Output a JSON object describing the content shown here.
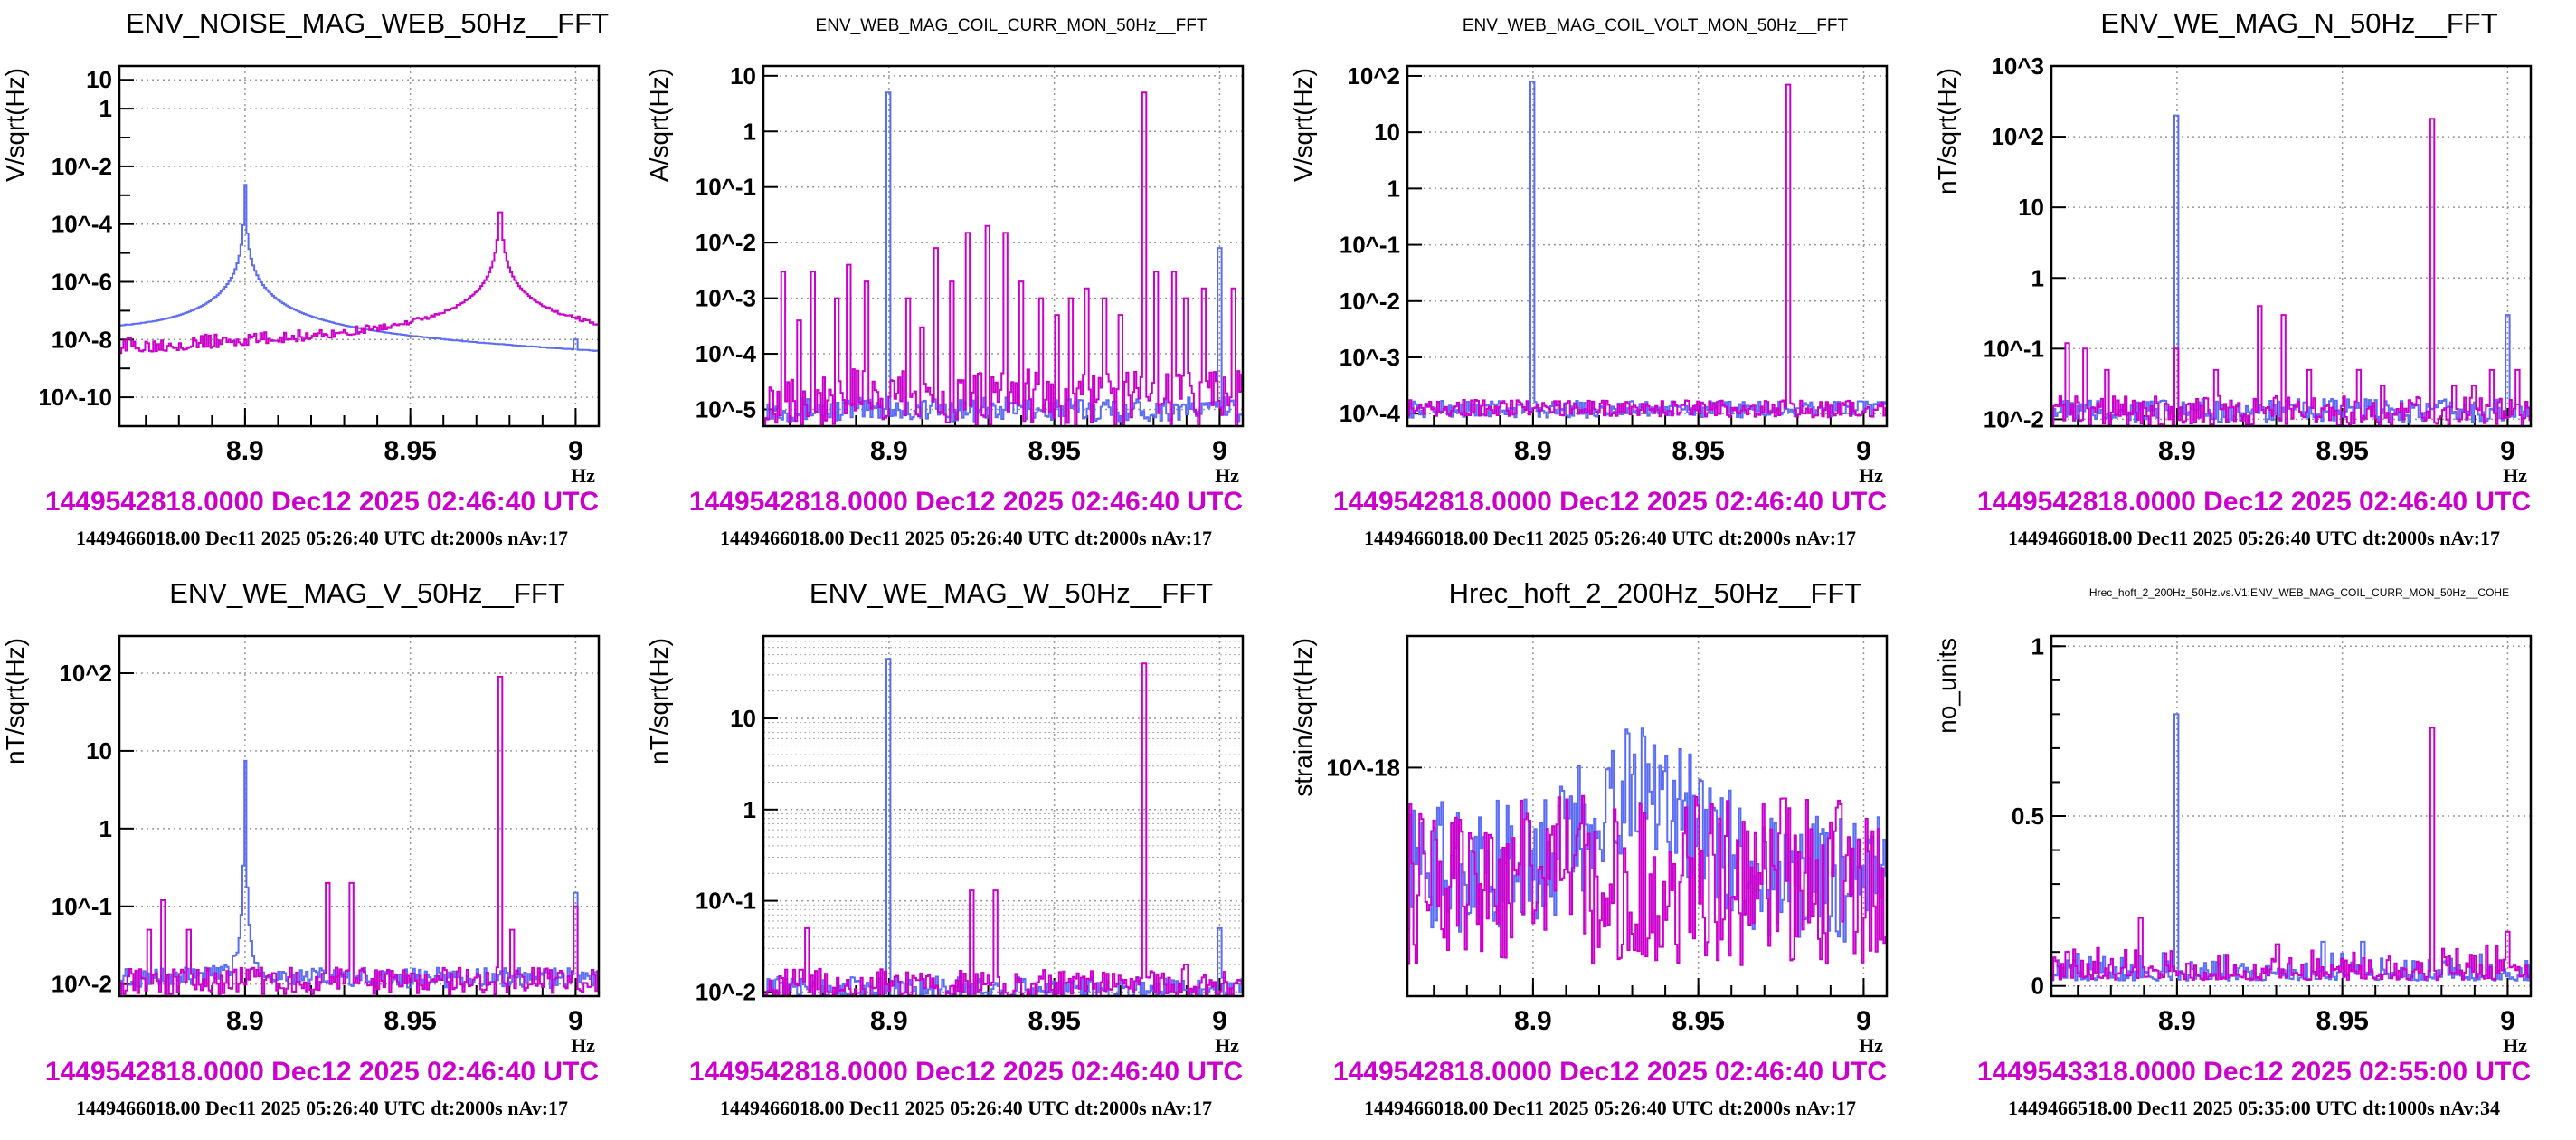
{
  "colors": {
    "ref": "#5b6cf5",
    "cur": "#cc00cc",
    "grid": "#999999"
  },
  "chart_data": [
    {
      "type": "line",
      "title": "ENV_NOISE_MAG_WEB_50Hz__FFT",
      "title_size": "big",
      "ylabel": "V/sqrt(Hz)",
      "xlabel": "Hz",
      "xlim": [
        8.862,
        9.007
      ],
      "xticks": [
        8.9,
        8.95,
        9
      ],
      "xtick_labels": [
        "8.9",
        "8.95",
        "9"
      ],
      "yscale": "log",
      "ylim": [
        1e-11,
        30
      ],
      "yticks": [
        1e-10,
        1e-08,
        1e-06,
        0.0001,
        0.01,
        1,
        10
      ],
      "ytick_labels": [
        "10^-10",
        "10^-8",
        "10^-6",
        "10^-4",
        "10^-2",
        "1",
        "10"
      ],
      "series": [
        {
          "name": "reference",
          "color": "#5b6cf5",
          "base": [
            1.5e-08,
            2e-09
          ],
          "noise": 0.05,
          "lorentz": [
            [
              8.9,
              8,
              1.7e-06
            ]
          ],
          "peaks": [
            [
              9.0,
              1e-08
            ]
          ]
        },
        {
          "name": "current",
          "color": "#cc00cc",
          "base": [
            4e-09,
            1.2e-08
          ],
          "noise": 0.9,
          "lorentz": [
            [
              8.9772,
              8,
              1.7e-06
            ]
          ],
          "peaks": []
        }
      ],
      "time_current": "1449542818.0000 Dec12 2025 02:46:40 UTC",
      "time_reference": "1449466018.00 Dec11 2025 05:26:40 UTC dt:2000s nAv:17"
    },
    {
      "type": "line",
      "title": "ENV_WEB_MAG_COIL_CURR_MON_50Hz__FFT",
      "title_size": "small",
      "ylabel": "A/sqrt(Hz)",
      "xlabel": "Hz",
      "xlim": [
        8.862,
        9.007
      ],
      "xticks": [
        8.9,
        8.95,
        9
      ],
      "xtick_labels": [
        "8.9",
        "8.95",
        "9"
      ],
      "yscale": "log",
      "ylim": [
        5e-06,
        15
      ],
      "yticks": [
        1e-05,
        0.0001,
        0.001,
        0.01,
        0.1,
        1,
        10
      ],
      "ytick_labels": [
        "10^-5",
        "10^-4",
        "10^-3",
        "10^-2",
        "10^-1",
        "1",
        "10"
      ],
      "series": [
        {
          "name": "reference",
          "color": "#5b6cf5",
          "base": [
            1e-05,
            1e-05
          ],
          "noise": 0.5,
          "lorentz": [],
          "peaks": [
            [
              8.9,
              5
            ],
            [
              9.0,
              0.008
            ]
          ]
        },
        {
          "name": "current",
          "color": "#cc00cc",
          "base": [
            1.6e-05,
            1.6e-05
          ],
          "noise": 1.2,
          "lorentz": [],
          "peaks": [
            [
              8.868,
              0.003
            ],
            [
              8.873,
              0.0004
            ],
            [
              8.877,
              0.003
            ],
            [
              8.884,
              0.001
            ],
            [
              8.888,
              0.004
            ],
            [
              8.893,
              0.002
            ],
            [
              8.906,
              0.001
            ],
            [
              8.91,
              0.0003
            ],
            [
              8.914,
              0.008
            ],
            [
              8.919,
              0.002
            ],
            [
              8.924,
              0.015
            ],
            [
              8.93,
              0.02
            ],
            [
              8.935,
              0.015
            ],
            [
              8.94,
              0.002
            ],
            [
              8.946,
              0.001
            ],
            [
              8.951,
              0.0005
            ],
            [
              8.955,
              0.001
            ],
            [
              8.96,
              0.0015
            ],
            [
              8.965,
              0.001
            ],
            [
              8.97,
              0.0005
            ],
            [
              8.9772,
              5
            ],
            [
              8.981,
              0.003
            ],
            [
              8.986,
              0.003
            ],
            [
              8.99,
              0.001
            ],
            [
              8.995,
              0.0015
            ],
            [
              9.004,
              0.0015
            ]
          ]
        }
      ],
      "time_current": "1449542818.0000 Dec12 2025 02:46:40 UTC",
      "time_reference": "1449466018.00 Dec11 2025 05:26:40 UTC dt:2000s nAv:17"
    },
    {
      "type": "line",
      "title": "ENV_WEB_MAG_COIL_VOLT_MON_50Hz__FFT",
      "title_size": "small",
      "ylabel": "V/sqrt(Hz)",
      "xlabel": "Hz",
      "xlim": [
        8.862,
        9.007
      ],
      "xticks": [
        8.9,
        8.95,
        9
      ],
      "xtick_labels": [
        "8.9",
        "8.95",
        "9"
      ],
      "yscale": "log",
      "ylim": [
        6e-05,
        150
      ],
      "yticks": [
        0.0001,
        0.001,
        0.01,
        0.1,
        1,
        10,
        100
      ],
      "ytick_labels": [
        "10^-4",
        "10^-3",
        "10^-2",
        "10^-1",
        "1",
        "10",
        "10^2"
      ],
      "series": [
        {
          "name": "reference",
          "color": "#5b6cf5",
          "base": [
            0.00012,
            0.00012
          ],
          "noise": 0.35,
          "lorentz": [],
          "peaks": [
            [
              8.9,
              80
            ]
          ]
        },
        {
          "name": "current",
          "color": "#cc00cc",
          "base": [
            0.00013,
            0.00012
          ],
          "noise": 0.35,
          "lorentz": [],
          "peaks": [
            [
              8.9772,
              70
            ]
          ]
        }
      ],
      "time_current": "1449542818.0000 Dec12 2025 02:46:40 UTC",
      "time_reference": "1449466018.00 Dec11 2025 05:26:40 UTC dt:2000s nAv:17"
    },
    {
      "type": "line",
      "title": "ENV_WE_MAG_N_50Hz__FFT",
      "title_size": "big",
      "ylabel": "nT/sqrt(Hz)",
      "xlabel": "Hz",
      "xlim": [
        8.862,
        9.007
      ],
      "xticks": [
        8.9,
        8.95,
        9
      ],
      "xtick_labels": [
        "8.9",
        "8.95",
        "9"
      ],
      "yscale": "log",
      "ylim": [
        0.008,
        1000
      ],
      "yticks": [
        0.01,
        0.1,
        1,
        10,
        100,
        1000
      ],
      "ytick_labels": [
        "10^-2",
        "10^-1",
        "1",
        "10",
        "10^2",
        "10^3"
      ],
      "series": [
        {
          "name": "reference",
          "color": "#5b6cf5",
          "base": [
            0.013,
            0.013
          ],
          "noise": 0.4,
          "lorentz": [],
          "peaks": [
            [
              8.9,
              200
            ],
            [
              9.0,
              0.3
            ]
          ]
        },
        {
          "name": "current",
          "color": "#cc00cc",
          "base": [
            0.013,
            0.013
          ],
          "noise": 0.5,
          "lorentz": [],
          "peaks": [
            [
              8.867,
              0.12
            ],
            [
              8.872,
              0.1
            ],
            [
              8.879,
              0.05
            ],
            [
              8.9,
              0.1
            ],
            [
              8.912,
              0.05
            ],
            [
              8.925,
              0.4
            ],
            [
              8.932,
              0.3
            ],
            [
              8.94,
              0.05
            ],
            [
              8.955,
              0.05
            ],
            [
              8.962,
              0.03
            ],
            [
              8.9772,
              180
            ],
            [
              8.984,
              0.03
            ],
            [
              8.99,
              0.03
            ],
            [
              8.995,
              0.05
            ],
            [
              9.003,
              0.05
            ]
          ]
        }
      ],
      "time_current": "1449542818.0000 Dec12 2025 02:46:40 UTC",
      "time_reference": "1449466018.00 Dec11 2025 05:26:40 UTC dt:2000s nAv:17"
    },
    {
      "type": "line",
      "title": "ENV_WE_MAG_V_50Hz__FFT",
      "title_size": "big",
      "ylabel": "nT/sqrt(Hz)",
      "xlabel": "Hz",
      "xlim": [
        8.862,
        9.007
      ],
      "xticks": [
        8.9,
        8.95,
        9
      ],
      "xtick_labels": [
        "8.9",
        "8.95",
        "9"
      ],
      "yscale": "log",
      "ylim": [
        0.007,
        300
      ],
      "yticks": [
        0.01,
        0.1,
        1,
        10,
        100
      ],
      "ytick_labels": [
        "10^-2",
        "10^-1",
        "1",
        "10",
        "10^2"
      ],
      "series": [
        {
          "name": "reference",
          "color": "#5b6cf5",
          "base": [
            0.012,
            0.012
          ],
          "noise": 0.3,
          "lorentz": [
            [
              8.9,
              90,
              3e-05
            ]
          ],
          "peaks": [
            [
              9.0,
              0.15
            ]
          ]
        },
        {
          "name": "current",
          "color": "#cc00cc",
          "base": [
            0.011,
            0.011
          ],
          "noise": 0.4,
          "lorentz": [],
          "peaks": [
            [
              8.871,
              0.05
            ],
            [
              8.875,
              0.12
            ],
            [
              8.883,
              0.05
            ],
            [
              8.925,
              0.2
            ],
            [
              8.932,
              0.2
            ],
            [
              8.9772,
              90
            ],
            [
              8.981,
              0.05
            ],
            [
              9.0,
              0.1
            ]
          ]
        }
      ],
      "time_current": "1449542818.0000 Dec12 2025 02:46:40 UTC",
      "time_reference": "1449466018.00 Dec11 2025 05:26:40 UTC dt:2000s nAv:17"
    },
    {
      "type": "line",
      "title": "ENV_WE_MAG_W_50Hz__FFT",
      "title_size": "big",
      "ylabel": "nT/sqrt(Hz)",
      "xlabel": "Hz",
      "xlim": [
        8.862,
        9.007
      ],
      "xticks": [
        8.9,
        8.95,
        9
      ],
      "xtick_labels": [
        "8.9",
        "8.95",
        "9"
      ],
      "yscale": "log",
      "ylim": [
        0.009,
        80
      ],
      "minor_grid": true,
      "yticks": [
        0.01,
        0.1,
        1,
        10
      ],
      "ytick_labels": [
        "10^-2",
        "10^-1",
        "1",
        "10"
      ],
      "series": [
        {
          "name": "reference",
          "color": "#5b6cf5",
          "base": [
            0.011,
            0.011
          ],
          "noise": 0.3,
          "lorentz": [],
          "peaks": [
            [
              8.9,
              45
            ],
            [
              9.0,
              0.05
            ]
          ]
        },
        {
          "name": "current",
          "color": "#cc00cc",
          "base": [
            0.012,
            0.012
          ],
          "noise": 0.4,
          "lorentz": [],
          "peaks": [
            [
              8.875,
              0.05
            ],
            [
              8.925,
              0.13
            ],
            [
              8.932,
              0.13
            ],
            [
              8.9772,
              40
            ],
            [
              8.99,
              0.02
            ]
          ]
        }
      ],
      "time_current": "1449542818.0000 Dec12 2025 02:46:40 UTC",
      "time_reference": "1449466018.00 Dec11 2025 05:26:40 UTC dt:2000s nAv:17"
    },
    {
      "type": "line",
      "title": "Hrec_hoft_2_200Hz_50Hz__FFT",
      "title_size": "big",
      "ylabel": "strain/sqrt(Hz)",
      "xlabel": "Hz",
      "xlim": [
        8.862,
        9.007
      ],
      "xticks": [
        8.9,
        8.95,
        9
      ],
      "xtick_labels": [
        "8.9",
        "8.95",
        "9"
      ],
      "yscale": "log",
      "ylim": [
        3e-19,
        2e-18
      ],
      "yticks": [
        1e-18
      ],
      "ytick_labels": [
        "10^-18"
      ],
      "series": [
        {
          "name": "reference",
          "color": "#5b6cf5",
          "base": [
            6e-19,
            5.5e-19
          ],
          "noise": 0.35,
          "lorentz": [],
          "bump": [
            8.933,
            0.02,
            1.6
          ],
          "peaks": []
        },
        {
          "name": "current",
          "color": "#cc00cc",
          "base": [
            5.5e-19,
            5.5e-19
          ],
          "noise": 0.45,
          "lorentz": [],
          "peaks": [
            [
              8.976,
              8.5e-19
            ]
          ]
        }
      ],
      "time_current": "1449542818.0000 Dec12 2025 02:46:40 UTC",
      "time_reference": "1449466018.00 Dec11 2025 05:26:40 UTC dt:2000s nAv:17"
    },
    {
      "type": "line",
      "title": "Hrec_hoft_2_200Hz_50Hz.vs.V1:ENV_WEB_MAG_COIL_CURR_MON_50Hz__COHE",
      "title_size": "tiny",
      "ylabel": "no_units",
      "xlabel": "Hz",
      "xlim": [
        8.862,
        9.007
      ],
      "xticks": [
        8.9,
        8.95,
        9
      ],
      "xtick_labels": [
        "8.9",
        "8.95",
        "9"
      ],
      "yscale": "linear",
      "ylim": [
        -0.03,
        1.03
      ],
      "yticks": [
        0,
        0.5,
        1
      ],
      "ytick_labels": [
        "0",
        "0.5",
        "1"
      ],
      "series": [
        {
          "name": "reference",
          "color": "#5b6cf5",
          "base": [
            0.025,
            0.025
          ],
          "noise": 0.03,
          "lorentz": [],
          "peaks": [
            [
              8.9,
              0.8
            ],
            [
              8.944,
              0.13
            ],
            [
              8.956,
              0.13
            ]
          ]
        },
        {
          "name": "current",
          "color": "#cc00cc",
          "base": [
            0.03,
            0.03
          ],
          "noise": 0.04,
          "lorentz": [],
          "peaks": [
            [
              8.889,
              0.2
            ],
            [
              8.9772,
              0.76
            ],
            [
              9.0,
              0.16
            ]
          ]
        }
      ],
      "time_current": "1449543318.0000 Dec12 2025 02:55:00 UTC",
      "time_reference": "1449466518.00 Dec11 2025 05:35:00 UTC dt:1000s nAv:34"
    }
  ]
}
